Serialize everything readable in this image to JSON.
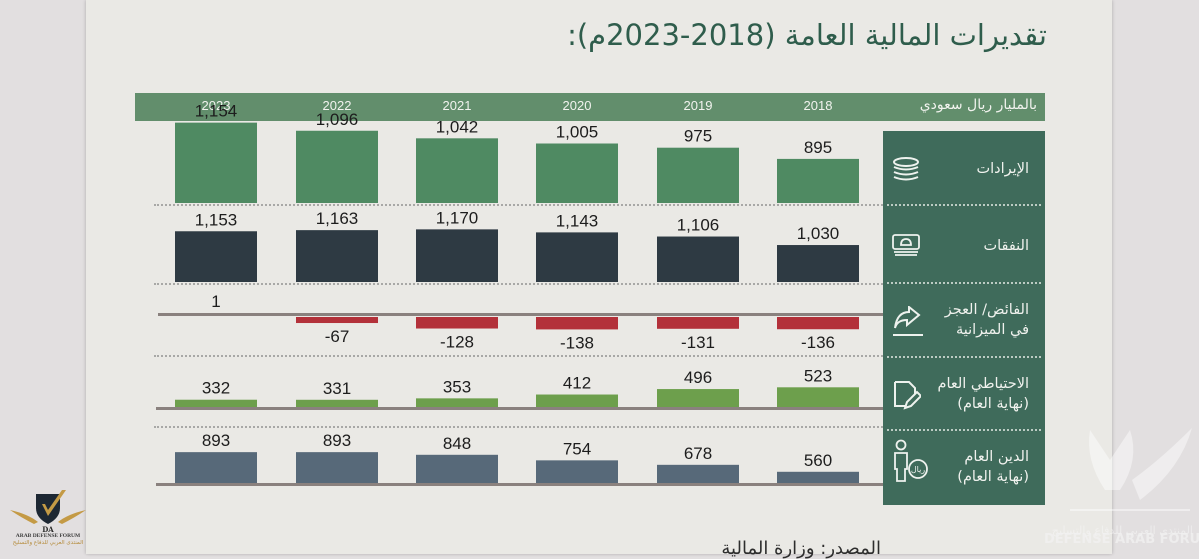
{
  "title": "تقديرات المالية العامة (2018-2023م):",
  "header": {
    "unit_label": "بالمليار ريال سعودي",
    "years": [
      "2023",
      "2022",
      "2021",
      "2020",
      "2019",
      "2018"
    ]
  },
  "rows": [
    {
      "id": "revenues",
      "label": "الإيرادات",
      "icon": "coins-stack-icon"
    },
    {
      "id": "expenditures",
      "label": "النفقات",
      "icon": "cash-bundle-icon"
    },
    {
      "id": "balance",
      "label_line1": "الفائض/ العجز",
      "label_line2": "في الميزانية",
      "icon": "rising-arrow-icon"
    },
    {
      "id": "reserves",
      "label_line1": "الاحتياطي العام",
      "label_line2": "(نهاية العام)",
      "icon": "document-pencil-icon"
    },
    {
      "id": "debt",
      "label_line1": "الدين العام",
      "label_line2": "(نهاية العام)",
      "icon": "person-riyal-icon"
    }
  ],
  "source": "المصدر: وزارة المالية",
  "watermark": {
    "left_caption_en": "ARAB DEFENSE FORUM",
    "left_caption_ar": "المنتدى العربي للدفاع والتسليح",
    "left_initials": "DA",
    "right_caption_ar": "المنتدى العربي للدفاع والتسليح",
    "right_caption_en": "DEFENSE ARAB FORUM"
  },
  "colors": {
    "header_bar": "#628e6c",
    "label_panel": "#3f6b5b",
    "revenues": "#4f8a62",
    "expenditures": "#2e3a43",
    "deficit": "#b3313a",
    "reserves": "#6d9f4c",
    "debt": "#576979",
    "title": "#2f5d4c"
  },
  "chart_data": {
    "type": "bar",
    "title": "تقديرات المالية العامة (2018-2023م):",
    "unit": "بالمليار ريال سعودي",
    "categories": [
      "2023",
      "2022",
      "2021",
      "2020",
      "2019",
      "2018"
    ],
    "series": [
      {
        "name": "الإيرادات",
        "values": [
          1154,
          1096,
          1042,
          1005,
          975,
          895
        ],
        "labels": [
          "1,154",
          "1,096",
          "1,042",
          "1,005",
          "975",
          "895"
        ]
      },
      {
        "name": "النفقات",
        "values": [
          1153,
          1163,
          1170,
          1143,
          1106,
          1030
        ],
        "labels": [
          "1,153",
          "1,163",
          "1,170",
          "1,143",
          "1,106",
          "1,030"
        ]
      },
      {
        "name": "الفائض/ العجز في الميزانية",
        "values": [
          1,
          -67,
          -128,
          -138,
          -131,
          -136
        ],
        "labels": [
          "1",
          "-67",
          "-128",
          "-138",
          "-131",
          "-136"
        ]
      },
      {
        "name": "الاحتياطي العام (نهاية العام)",
        "values": [
          332,
          331,
          353,
          412,
          496,
          523
        ],
        "labels": [
          "332",
          "331",
          "353",
          "412",
          "496",
          "523"
        ]
      },
      {
        "name": "الدين العام (نهاية العام)",
        "values": [
          893,
          893,
          848,
          754,
          678,
          560
        ],
        "labels": [
          "893",
          "893",
          "848",
          "754",
          "678",
          "560"
        ]
      }
    ],
    "xlabel": "",
    "ylabel": "",
    "grid": false,
    "legend": "right-panel"
  }
}
